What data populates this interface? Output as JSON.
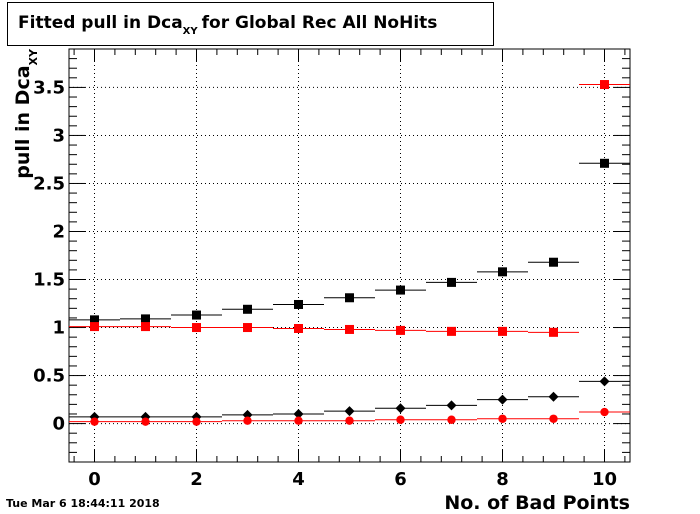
{
  "chart_data": {
    "type": "scatter",
    "title_main": "Fitted pull in Dca",
    "title_sub": "XY",
    "title_rest": "for Global Rec All NoHits",
    "xlabel": "No. of Bad Points",
    "ylabel_main": "pull in Dca",
    "ylabel_sub": "XY",
    "xlim": [
      -0.5,
      10.5
    ],
    "ylim": [
      -0.4,
      3.9
    ],
    "grid": true,
    "x_ticks": [
      "0",
      "2",
      "4",
      "6",
      "8",
      "10"
    ],
    "y_ticks": [
      "0",
      "0.5",
      "1",
      "1.5",
      "2",
      "2.5",
      "3",
      "3.5"
    ],
    "series": [
      {
        "marker": "square",
        "color": "#000000",
        "x": [
          0,
          1,
          2,
          3,
          4,
          5,
          6,
          7,
          8,
          9,
          10
        ],
        "y": [
          1.08,
          1.09,
          1.13,
          1.19,
          1.24,
          1.31,
          1.39,
          1.47,
          1.58,
          1.68,
          2.71
        ]
      },
      {
        "marker": "square",
        "color": "#ff0000",
        "x": [
          0,
          1,
          2,
          3,
          4,
          5,
          6,
          7,
          8,
          9,
          10
        ],
        "y": [
          1.01,
          1.01,
          1.0,
          1.0,
          0.99,
          0.98,
          0.97,
          0.96,
          0.96,
          0.95,
          3.53
        ]
      },
      {
        "marker": "diamond",
        "color": "#000000",
        "x": [
          0,
          1,
          2,
          3,
          4,
          5,
          6,
          7,
          8,
          9,
          10
        ],
        "y": [
          0.07,
          0.07,
          0.07,
          0.09,
          0.1,
          0.13,
          0.16,
          0.19,
          0.25,
          0.28,
          0.44
        ]
      },
      {
        "marker": "circle",
        "color": "#ff0000",
        "x": [
          0,
          1,
          2,
          3,
          4,
          5,
          6,
          7,
          8,
          9,
          10
        ],
        "y": [
          0.02,
          0.02,
          0.02,
          0.03,
          0.03,
          0.03,
          0.04,
          0.04,
          0.05,
          0.05,
          0.12
        ]
      }
    ]
  },
  "footer": {
    "date": "Tue Mar  6 18:44:11 2018"
  }
}
